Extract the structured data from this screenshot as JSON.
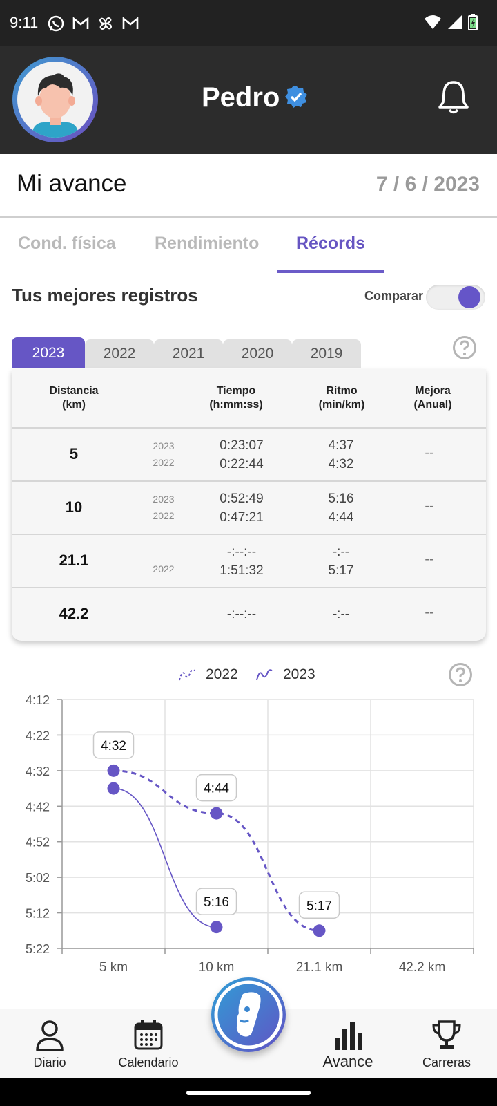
{
  "status_bar": {
    "time": "9:11"
  },
  "header": {
    "user_name": "Pedro"
  },
  "page": {
    "title": "Mi avance",
    "date": "7 / 6 / 2023"
  },
  "tabs": [
    {
      "label": "Cond. física"
    },
    {
      "label": "Rendimiento"
    },
    {
      "label": "Récords"
    }
  ],
  "section": {
    "title": "Tus mejores registros",
    "compare_label": "Comparar"
  },
  "year_tabs": [
    "2023",
    "2022",
    "2021",
    "2020",
    "2019"
  ],
  "table": {
    "headers": {
      "distance": "Distancia",
      "distance_unit": "(km)",
      "time": "Tiempo",
      "time_unit": "(h:mm:ss)",
      "pace": "Ritmo",
      "pace_unit": "(min/km)",
      "improve": "Mejora",
      "improve_unit": "(Anual)"
    },
    "rows": [
      {
        "km": "5",
        "year_a": "2023",
        "year_b": "2022",
        "time_a": "0:23:07",
        "time_b": "0:22:44",
        "pace_a": "4:37",
        "pace_b": "4:32",
        "improve": "--"
      },
      {
        "km": "10",
        "year_a": "2023",
        "year_b": "2022",
        "time_a": "0:52:49",
        "time_b": "0:47:21",
        "pace_a": "5:16",
        "pace_b": "4:44",
        "improve": "--"
      },
      {
        "km": "21.1",
        "year_a": "",
        "year_b": "2022",
        "time_a": "-:--:--",
        "time_b": "1:51:32",
        "pace_a": "-:--",
        "pace_b": "5:17",
        "improve": "--"
      },
      {
        "km": "42.2",
        "year_a": "",
        "year_b": "",
        "time_a": "-:--:--",
        "time_b": "",
        "pace_a": "-:--",
        "pace_b": "",
        "improve": "--"
      }
    ]
  },
  "chart_data": {
    "type": "line",
    "legend": [
      "2022",
      "2023"
    ],
    "categories": [
      "5 km",
      "10 km",
      "21.1 km",
      "42.2 km"
    ],
    "y_ticks": [
      "4:12",
      "4:22",
      "4:32",
      "4:42",
      "4:52",
      "5:02",
      "5:12",
      "5:22"
    ],
    "ylim_seconds": [
      252,
      322
    ],
    "series": [
      {
        "name": "2022",
        "style": "dashed",
        "values_seconds": [
          272,
          284,
          317,
          null
        ],
        "labels": [
          "4:32",
          "4:44",
          "5:17",
          null
        ]
      },
      {
        "name": "2023",
        "style": "solid",
        "values_seconds": [
          277,
          316,
          null,
          null
        ],
        "labels": [
          null,
          "5:16",
          null,
          null
        ]
      }
    ],
    "accent": "#6656c5"
  },
  "bottom_nav": {
    "diario": "Diario",
    "calendario": "Calendario",
    "avance": "Avance",
    "carreras": "Carreras"
  }
}
